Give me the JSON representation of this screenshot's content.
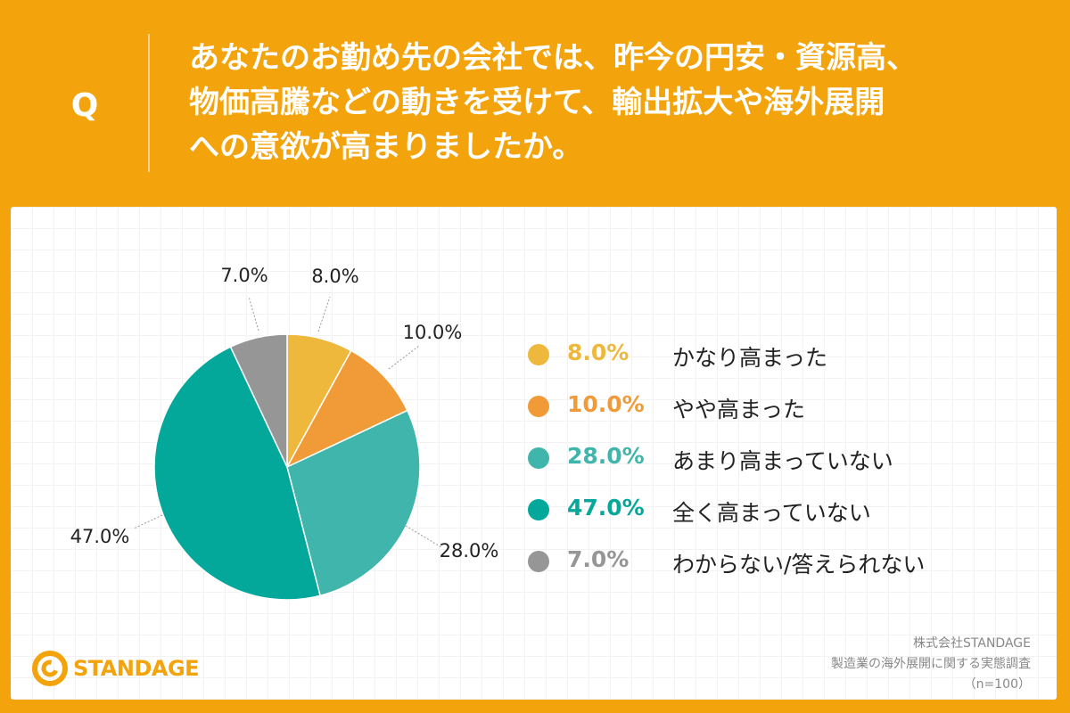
{
  "question": {
    "mark": "Q",
    "lines": [
      "あなたのお勤め先の会社では、昨今の円安・資源高、",
      "物価高騰などの動きを受けて、輸出拡大や海外展開",
      "への意欲が高まりましたか。"
    ]
  },
  "chart_data": {
    "type": "pie",
    "start_angle": "12 o'clock",
    "direction": "clockwise",
    "slices": [
      {
        "label": "かなり高まった",
        "value": 8.0,
        "display": "8.0%",
        "color": "#EDB83C"
      },
      {
        "label": "やや高まった",
        "value": 10.0,
        "display": "10.0%",
        "color": "#F09A38"
      },
      {
        "label": "あまり高まっていない",
        "value": 28.0,
        "display": "28.0%",
        "color": "#3FB5AC"
      },
      {
        "label": "全く高まっていない",
        "value": 47.0,
        "display": "47.0%",
        "color": "#03A89A"
      },
      {
        "label": "わからない/答えられない",
        "value": 7.0,
        "display": "7.0%",
        "color": "#969696"
      }
    ],
    "legend_position": "right"
  },
  "brand": {
    "logo_text": "STANDAGE",
    "accent": "#F3A30B",
    "logo_icon": "c-ring-icon"
  },
  "source": {
    "company": "株式会社STANDAGE",
    "survey": "製造業の海外展開に関する実態調査",
    "sample": "（n=100）"
  },
  "colors": {
    "background": "#F3A30B",
    "card": "#FFFFFF"
  }
}
